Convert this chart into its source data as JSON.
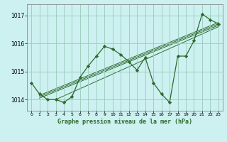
{
  "title": "Graphe pression niveau de la mer (hPa)",
  "bg_color": "#cdf0f0",
  "grid_color": "#99ccbb",
  "line_color": "#2d6a2d",
  "marker_color": "#2d6a2d",
  "xlim": [
    -0.5,
    23.5
  ],
  "ylim": [
    1013.6,
    1017.4
  ],
  "yticks": [
    1014,
    1015,
    1016,
    1017
  ],
  "xticks": [
    0,
    1,
    2,
    3,
    4,
    5,
    6,
    7,
    8,
    9,
    10,
    11,
    12,
    13,
    14,
    15,
    16,
    17,
    18,
    19,
    20,
    21,
    22,
    23
  ],
  "main_series": {
    "x": [
      0,
      1,
      2,
      3,
      4,
      5,
      6,
      7,
      8,
      9,
      10,
      11,
      12,
      13,
      14,
      15,
      16,
      17,
      18,
      19,
      20,
      21,
      22,
      23
    ],
    "y": [
      1014.6,
      1014.2,
      1014.0,
      1014.0,
      1013.9,
      1014.1,
      1014.8,
      1015.2,
      1015.55,
      1015.9,
      1015.8,
      1015.6,
      1015.35,
      1015.05,
      1015.5,
      1014.6,
      1014.2,
      1013.9,
      1015.55,
      1015.55,
      1016.1,
      1017.05,
      1016.85,
      1016.7
    ]
  },
  "trend_lines": [
    {
      "x": [
        1,
        23
      ],
      "y": [
        1014.15,
        1016.75
      ]
    },
    {
      "x": [
        1,
        23
      ],
      "y": [
        1014.1,
        1016.7
      ]
    },
    {
      "x": [
        1,
        23
      ],
      "y": [
        1014.05,
        1016.65
      ]
    },
    {
      "x": [
        3,
        23
      ],
      "y": [
        1014.0,
        1016.6
      ]
    }
  ]
}
